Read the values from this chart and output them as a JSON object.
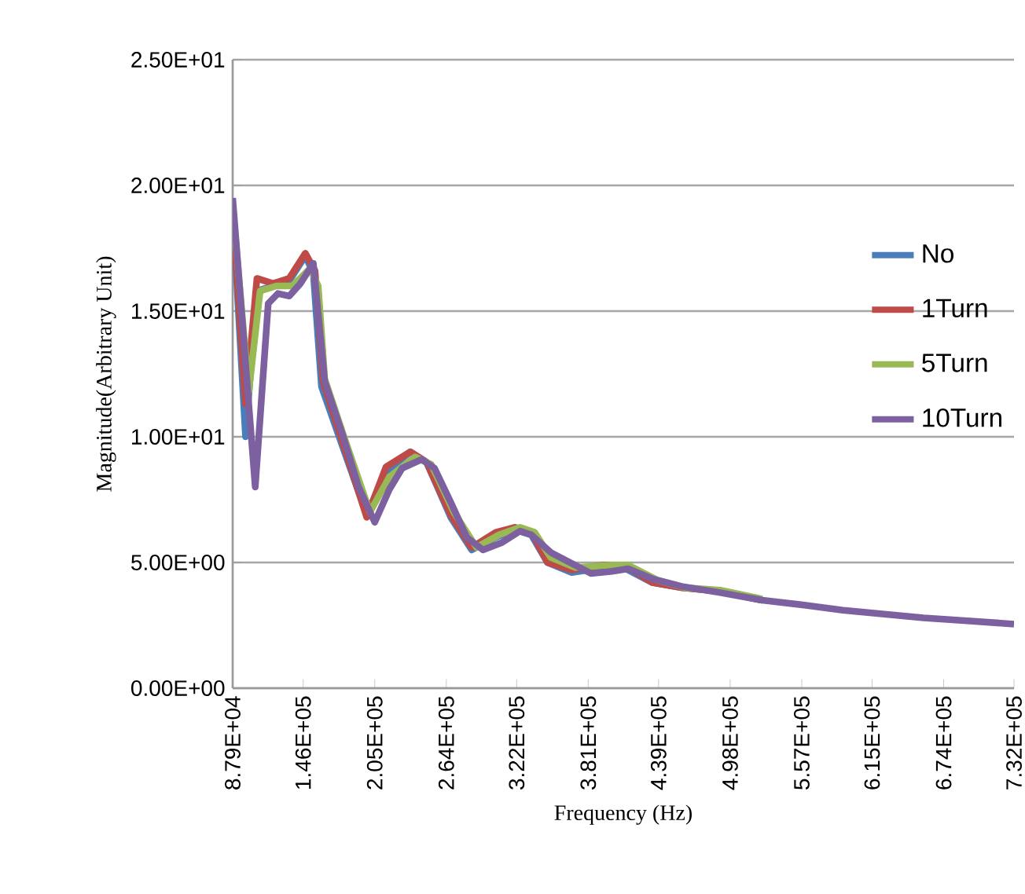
{
  "chart_data": {
    "type": "line",
    "xlabel": "Frequency (Hz)",
    "ylabel": "Magnitude(Arbitrary Unit)",
    "xlim": [
      87900,
      732000
    ],
    "xticks": [
      {
        "value": 87900,
        "label": "8.79E+04"
      },
      {
        "value": 146000,
        "label": "1.46E+05"
      },
      {
        "value": 205000,
        "label": "2.05E+05"
      },
      {
        "value": 264000,
        "label": "2.64E+05"
      },
      {
        "value": 322000,
        "label": "3.22E+05"
      },
      {
        "value": 381000,
        "label": "3.81E+05"
      },
      {
        "value": 439000,
        "label": "4.39E+05"
      },
      {
        "value": 498000,
        "label": "4.98E+05"
      },
      {
        "value": 557000,
        "label": "5.57E+05"
      },
      {
        "value": 615000,
        "label": "6.15E+05"
      },
      {
        "value": 674000,
        "label": "6.74E+05"
      },
      {
        "value": 732000,
        "label": "7.32E+05"
      }
    ],
    "ylim": [
      0,
      25
    ],
    "yticks": [
      {
        "value": 0,
        "label": "0.00E+00"
      },
      {
        "value": 5,
        "label": "5.00E+00"
      },
      {
        "value": 10,
        "label": "1.00E+01"
      },
      {
        "value": 15,
        "label": "1.50E+01"
      },
      {
        "value": 20,
        "label": "2.00E+01"
      },
      {
        "value": 25,
        "label": "2.50E+01"
      }
    ],
    "grid": "y",
    "legend": "right",
    "marker": "none",
    "line_style": "solid",
    "series": [
      {
        "name": "No",
        "color": "#4a7ebb",
        "x": [
          87900,
          98500,
          107900,
          121200,
          134500,
          147800,
          154400,
          161100,
          177100,
          198400,
          214300,
          234300,
          247600,
          267600,
          284900,
          304800,
          320800,
          334100,
          347400,
          367400,
          394000,
          410000,
          433900,
          457900,
          489800,
          524400
        ],
        "values": [
          19.0,
          10.0,
          15.8,
          16.0,
          16.2,
          17.2,
          16.5,
          12.0,
          9.8,
          6.9,
          8.6,
          9.4,
          9.0,
          6.8,
          5.5,
          6.0,
          6.3,
          6.1,
          5.0,
          4.6,
          4.8,
          4.8,
          4.2,
          4.0,
          3.85,
          3.5
        ]
      },
      {
        "name": "1Turn",
        "color": "#be4b48",
        "x": [
          87900,
          98500,
          107900,
          121200,
          134500,
          147800,
          155800,
          162400,
          177100,
          198400,
          214300,
          234300,
          247600,
          267600,
          284900,
          304800,
          320800,
          334100,
          347400,
          367400,
          394000,
          410000,
          433900,
          457900,
          489800,
          524400
        ],
        "values": [
          19.0,
          11.3,
          16.3,
          16.1,
          16.3,
          17.3,
          16.6,
          12.2,
          10.0,
          6.8,
          8.8,
          9.4,
          9.0,
          6.9,
          5.6,
          6.2,
          6.4,
          6.2,
          5.0,
          4.7,
          4.9,
          4.9,
          4.2,
          4.0,
          3.85,
          3.5
        ]
      },
      {
        "name": "5Turn",
        "color": "#98b954",
        "x": [
          87900,
          101200,
          110500,
          123800,
          137100,
          151800,
          158400,
          163800,
          179700,
          201000,
          217000,
          238300,
          251600,
          270200,
          288900,
          307500,
          324800,
          336800,
          350100,
          370000,
          400600,
          413900,
          437900,
          460500,
          489800,
          524400
        ],
        "values": [
          19.2,
          11.8,
          15.8,
          16.0,
          16.0,
          16.7,
          16.0,
          12.3,
          10.0,
          7.0,
          8.4,
          9.2,
          8.9,
          7.0,
          5.6,
          6.1,
          6.4,
          6.2,
          5.2,
          4.8,
          4.9,
          4.9,
          4.3,
          4.0,
          3.9,
          3.55
        ]
      },
      {
        "name": "10Turn",
        "color": "#7d60a0",
        "x": [
          87900,
          106500,
          117200,
          125200,
          134500,
          143800,
          154400,
          163800,
          178400,
          191700,
          205000,
          217000,
          227600,
          243600,
          254300,
          267600,
          280900,
          294200,
          310100,
          324800,
          334100,
          350100,
          370000,
          383300,
          400600,
          413900,
          433900,
          457900,
          489800,
          524400,
          560300,
          590900,
          624200,
          657500,
          693400,
          732000
        ],
        "values": [
          19.5,
          8.0,
          15.3,
          15.7,
          15.6,
          16.1,
          16.9,
          12.2,
          10.1,
          8.0,
          6.6,
          7.9,
          8.75,
          9.1,
          8.75,
          7.4,
          6.0,
          5.5,
          5.8,
          6.25,
          6.1,
          5.4,
          4.9,
          4.56,
          4.65,
          4.75,
          4.35,
          4.05,
          3.8,
          3.5,
          3.3,
          3.1,
          2.95,
          2.8,
          2.68,
          2.55
        ]
      }
    ]
  }
}
